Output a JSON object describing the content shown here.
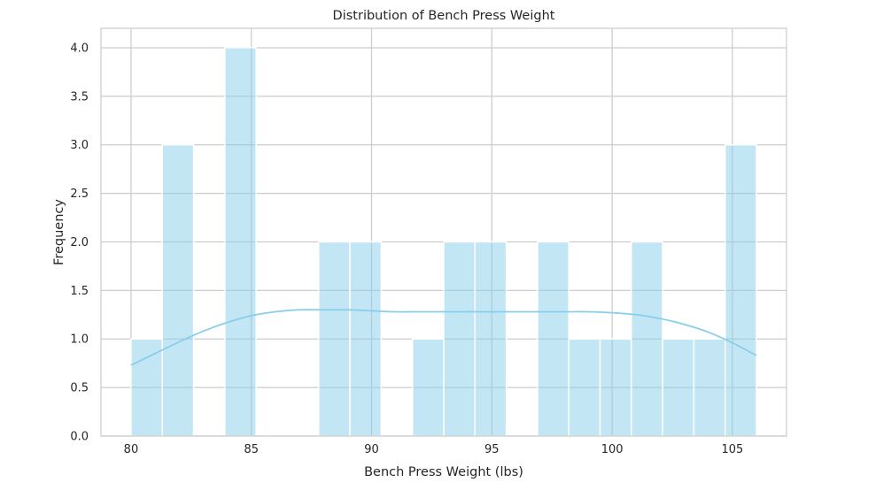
{
  "chart_data": {
    "type": "bar",
    "subtype": "histogram",
    "title": "Distribution of Bench Press Weight",
    "xlabel": "Bench Press Weight (lbs)",
    "ylabel": "Frequency",
    "xlim": [
      78.75,
      107.25
    ],
    "ylim": [
      0,
      4.2
    ],
    "xticks": [
      80,
      85,
      90,
      95,
      100,
      105
    ],
    "yticks": [
      0.0,
      0.5,
      1.0,
      1.5,
      2.0,
      2.5,
      3.0,
      3.5,
      4.0
    ],
    "grid": true,
    "bins": [
      {
        "x0": 80.0,
        "x1": 81.3,
        "count": 1
      },
      {
        "x0": 81.3,
        "x1": 82.6,
        "count": 3
      },
      {
        "x0": 82.6,
        "x1": 83.9,
        "count": 0
      },
      {
        "x0": 83.9,
        "x1": 85.2,
        "count": 4
      },
      {
        "x0": 85.2,
        "x1": 86.5,
        "count": 0
      },
      {
        "x0": 86.5,
        "x1": 87.8,
        "count": 0
      },
      {
        "x0": 87.8,
        "x1": 89.1,
        "count": 2
      },
      {
        "x0": 89.1,
        "x1": 90.4,
        "count": 2
      },
      {
        "x0": 90.4,
        "x1": 91.7,
        "count": 0
      },
      {
        "x0": 91.7,
        "x1": 93.0,
        "count": 1
      },
      {
        "x0": 93.0,
        "x1": 94.3,
        "count": 2
      },
      {
        "x0": 94.3,
        "x1": 95.6,
        "count": 2
      },
      {
        "x0": 95.6,
        "x1": 96.9,
        "count": 0
      },
      {
        "x0": 96.9,
        "x1": 98.2,
        "count": 2
      },
      {
        "x0": 98.2,
        "x1": 99.5,
        "count": 1
      },
      {
        "x0": 99.5,
        "x1": 100.8,
        "count": 1
      },
      {
        "x0": 100.8,
        "x1": 102.1,
        "count": 2
      },
      {
        "x0": 102.1,
        "x1": 103.4,
        "count": 1
      },
      {
        "x0": 103.4,
        "x1": 104.7,
        "count": 1
      },
      {
        "x0": 104.7,
        "x1": 106.0,
        "count": 3
      }
    ],
    "kde": {
      "x": [
        80,
        81,
        82,
        83,
        84,
        85,
        86,
        87,
        88,
        89,
        90,
        91,
        92,
        93,
        94,
        95,
        96,
        97,
        98,
        99,
        100,
        101,
        102,
        103,
        104,
        105,
        106
      ],
      "y": [
        0.73,
        0.85,
        0.97,
        1.08,
        1.17,
        1.24,
        1.28,
        1.3,
        1.3,
        1.3,
        1.29,
        1.28,
        1.28,
        1.28,
        1.28,
        1.28,
        1.28,
        1.28,
        1.28,
        1.28,
        1.27,
        1.25,
        1.21,
        1.15,
        1.07,
        0.96,
        0.83
      ]
    },
    "colors": {
      "bar_fill": "#87CEEB",
      "bar_opacity": 0.5,
      "bar_edge": "#ffffff",
      "kde_line": "#87CEEB",
      "grid": "#cccccc",
      "axes_edge": "#cccccc",
      "text": "#262626"
    }
  }
}
